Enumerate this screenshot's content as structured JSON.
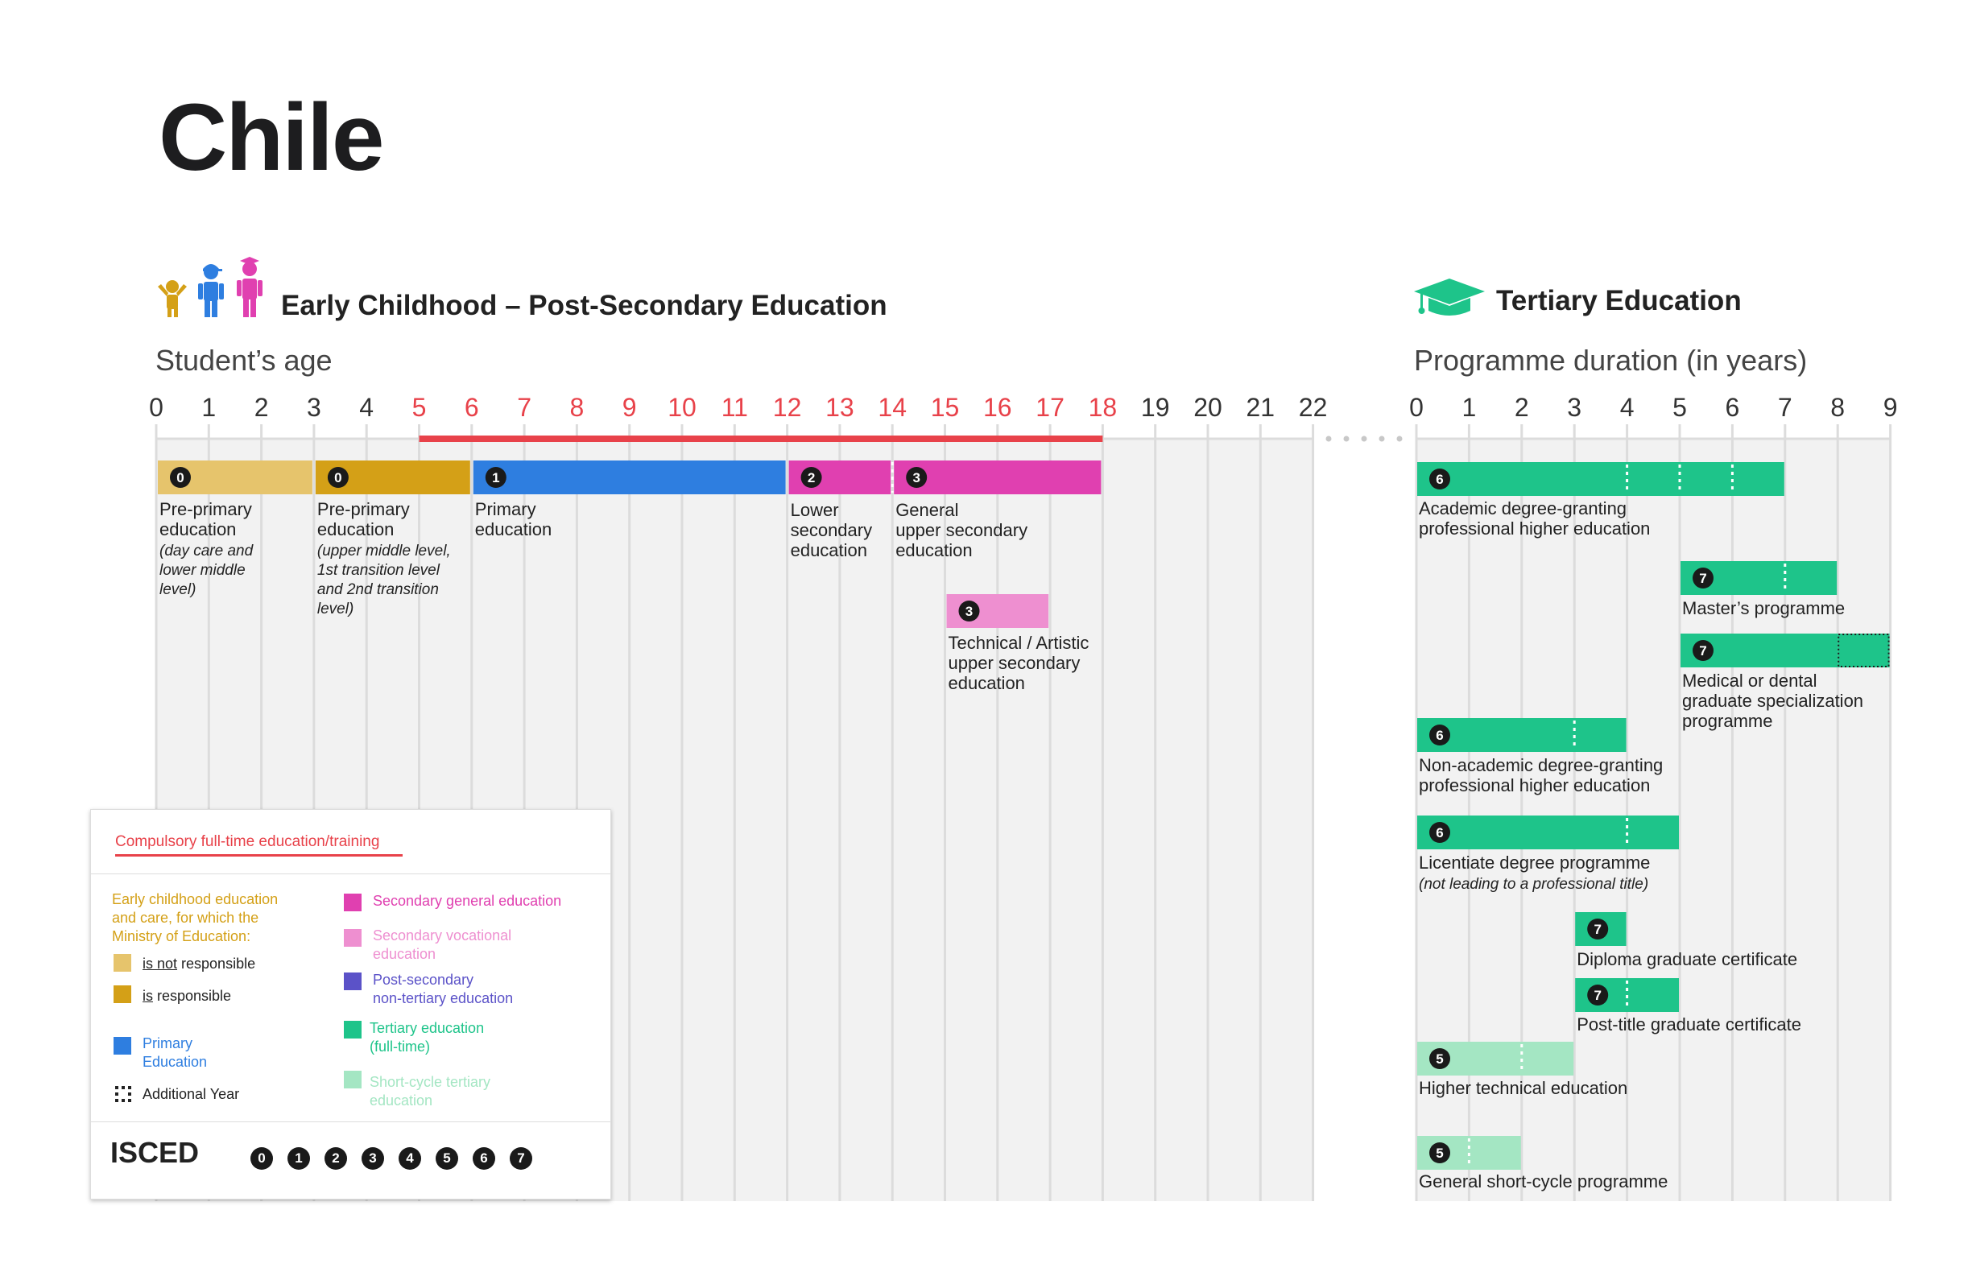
{
  "title": "Chile",
  "left_section": {
    "title": "Early Childhood – Post-Secondary Education",
    "axis_title": "Student’s age"
  },
  "right_section": {
    "title": "Tertiary Education",
    "axis_title": "Programme duration (in years)"
  },
  "colors": {
    "pre_primary_not": "#e6c46c",
    "pre_primary_is": "#d4a017",
    "primary": "#2e7ee0",
    "secondary_general": "#e040b0",
    "secondary_vocational": "#ee8fd0",
    "post_secondary": "#5b52c8",
    "tertiary": "#1ec48a",
    "short_cycle": "#a4e6c3",
    "compulsory": "#e8424a",
    "age_highlight": "#e8424a",
    "grid": "#dcdcdc",
    "column": "#f2f2f2"
  },
  "chart_data": {
    "type": "timeline",
    "age_axis": {
      "ticks": [
        "0",
        "1",
        "2",
        "3",
        "4",
        "5",
        "6",
        "7",
        "8",
        "9",
        "10",
        "11",
        "12",
        "13",
        "14",
        "15",
        "16",
        "17",
        "18",
        "19",
        "20",
        "21",
        "22"
      ],
      "highlighted_ticks": [
        "5",
        "6",
        "7",
        "8",
        "9",
        "10",
        "11",
        "12",
        "13",
        "14",
        "15",
        "16",
        "17",
        "18"
      ],
      "compulsory_range": [
        5,
        18
      ]
    },
    "duration_axis": {
      "ticks": [
        "0",
        "1",
        "2",
        "3",
        "4",
        "5",
        "6",
        "7",
        "8",
        "9"
      ]
    },
    "early_programmes": [
      {
        "isced": "0",
        "start": 0,
        "end": 3,
        "color": "pre_primary_not",
        "label": [
          "Pre-primary",
          "education"
        ],
        "note": [
          "(day care and",
          "lower middle",
          "level)"
        ]
      },
      {
        "isced": "0",
        "start": 3,
        "end": 6,
        "color": "pre_primary_is",
        "label": [
          "Pre-primary",
          "education"
        ],
        "note": [
          "(upper middle level,",
          "1st transition level",
          "and 2nd transition",
          "level)"
        ]
      },
      {
        "isced": "1",
        "start": 6,
        "end": 12,
        "color": "primary",
        "label": [
          "Primary",
          "education"
        ]
      },
      {
        "isced": "2",
        "start": 12,
        "end": 14,
        "color": "secondary_general",
        "label": [
          "Lower",
          "secondary",
          "education"
        ]
      },
      {
        "isced": "3",
        "start": 14,
        "end": 18,
        "color": "secondary_general",
        "label": [
          "General",
          "upper secondary",
          "education"
        ]
      },
      {
        "isced": "3",
        "start": 15,
        "end": 17,
        "color": "secondary_vocational",
        "label": [
          "Technical / Artistic",
          "upper secondary",
          "education"
        ]
      }
    ],
    "tertiary_programmes": [
      {
        "isced": "6",
        "start": 0,
        "end": 7,
        "dividers": [
          4,
          5,
          6
        ],
        "color": "tertiary",
        "label": [
          "Academic degree-granting",
          "professional higher education"
        ]
      },
      {
        "isced": "7",
        "start": 5,
        "end": 8,
        "dividers": [
          7
        ],
        "color": "tertiary",
        "label": [
          "Master’s programme"
        ]
      },
      {
        "isced": "7",
        "start": 5,
        "end": 9,
        "additional_from": 8,
        "dividers": [],
        "color": "tertiary",
        "label": [
          "Medical or dental",
          "graduate specialization",
          "programme"
        ]
      },
      {
        "isced": "6",
        "start": 0,
        "end": 4,
        "dividers": [
          3
        ],
        "color": "tertiary",
        "label": [
          "Non-academic degree-granting",
          "professional higher education"
        ]
      },
      {
        "isced": "6",
        "start": 0,
        "end": 5,
        "dividers": [
          4
        ],
        "color": "tertiary",
        "label": [
          "Licentiate degree programme"
        ],
        "note": [
          "(not leading to a professional title)"
        ]
      },
      {
        "isced": "7",
        "start": 3,
        "end": 4,
        "dividers": [],
        "color": "tertiary",
        "label": [
          "Diploma graduate certificate"
        ]
      },
      {
        "isced": "7",
        "start": 3,
        "end": 5,
        "dividers": [
          4
        ],
        "color": "tertiary",
        "label": [
          "Post-title graduate certificate"
        ]
      },
      {
        "isced": "5",
        "start": 0,
        "end": 3,
        "dividers": [
          2
        ],
        "color": "short_cycle",
        "label": [
          "Higher technical education"
        ]
      },
      {
        "isced": "5",
        "start": 0,
        "end": 2,
        "dividers": [
          1
        ],
        "color": "short_cycle",
        "label": [
          "General short-cycle programme"
        ]
      }
    ]
  },
  "legend": {
    "compulsory": "Compulsory full-time education/training",
    "ecec_heading": [
      "Early childhood education",
      "and care, for which the",
      "Ministry of Education:"
    ],
    "not_responsible": {
      "underlined": "is not",
      "rest": " responsible"
    },
    "responsible": {
      "underlined": "is",
      "rest": " responsible"
    },
    "primary": [
      "Primary",
      "Education"
    ],
    "additional_year": "Additional Year",
    "secondary_general": "Secondary general education",
    "secondary_vocational": [
      "Secondary vocational",
      "education"
    ],
    "post_secondary": [
      "Post-secondary",
      "non-tertiary education"
    ],
    "tertiary": [
      "Tertiary education",
      "(full-time)"
    ],
    "short_cycle": [
      "Short-cycle tertiary",
      "education"
    ],
    "isced_label": "ISCED",
    "isced_levels": [
      "0",
      "1",
      "2",
      "3",
      "4",
      "5",
      "6",
      "7"
    ]
  }
}
